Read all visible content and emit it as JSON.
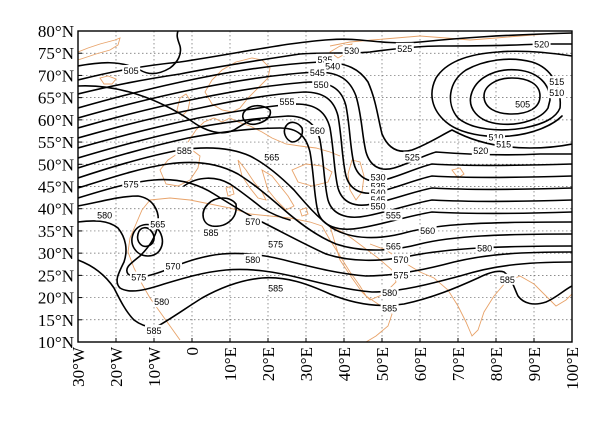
{
  "map": {
    "projection": "equirectangular",
    "lon_range": [
      -30,
      100
    ],
    "lat_range": [
      10,
      80
    ],
    "lon_step": 10,
    "lat_step": 5,
    "grid": "dotted",
    "coastline_color": "#e8a36a",
    "contour_color": "#000000",
    "contour_interval": 5,
    "lat_labels": [
      "10°N",
      "15°N",
      "20°N",
      "25°N",
      "30°N",
      "35°N",
      "40°N",
      "45°N",
      "50°N",
      "55°N",
      "60°N",
      "65°N",
      "70°N",
      "75°N",
      "80°N"
    ],
    "lon_labels": [
      "30°W",
      "20°W",
      "10°W",
      "0",
      "10°E",
      "20°E",
      "30°E",
      "40°E",
      "50°E",
      "60°E",
      "70°E",
      "80°E",
      "90°E",
      "100°E"
    ],
    "contour_labels": [
      {
        "text": "505",
        "lon": -16,
        "lat": 71
      },
      {
        "text": "530",
        "lon": 42,
        "lat": 75.5
      },
      {
        "text": "525",
        "lon": 56,
        "lat": 76
      },
      {
        "text": "520",
        "lon": 92,
        "lat": 77
      },
      {
        "text": "535",
        "lon": 35,
        "lat": 73.5
      },
      {
        "text": "540",
        "lon": 37,
        "lat": 72
      },
      {
        "text": "545",
        "lon": 33,
        "lat": 70.5
      },
      {
        "text": "550",
        "lon": 34,
        "lat": 67.8
      },
      {
        "text": "515",
        "lon": 96,
        "lat": 68.5
      },
      {
        "text": "510",
        "lon": 96,
        "lat": 66
      },
      {
        "text": "505",
        "lon": 87,
        "lat": 63.5
      },
      {
        "text": "555",
        "lon": 25,
        "lat": 64
      },
      {
        "text": "560",
        "lon": 33,
        "lat": 57.5
      },
      {
        "text": "565",
        "lon": 21,
        "lat": 51.5
      },
      {
        "text": "510",
        "lon": 80,
        "lat": 56
      },
      {
        "text": "515",
        "lon": 82,
        "lat": 54.5
      },
      {
        "text": "520",
        "lon": 76,
        "lat": 53
      },
      {
        "text": "525",
        "lon": 58,
        "lat": 51.5
      },
      {
        "text": "585",
        "lon": -2,
        "lat": 53
      },
      {
        "text": "530",
        "lon": 49,
        "lat": 47
      },
      {
        "text": "535",
        "lon": 49,
        "lat": 45
      },
      {
        "text": "540",
        "lon": 49,
        "lat": 43.5
      },
      {
        "text": "545",
        "lon": 49,
        "lat": 42
      },
      {
        "text": "550",
        "lon": 49,
        "lat": 40.5
      },
      {
        "text": "555",
        "lon": 53,
        "lat": 38.5
      },
      {
        "text": "575",
        "lon": -16,
        "lat": 45.5
      },
      {
        "text": "580",
        "lon": -23,
        "lat": 38.5
      },
      {
        "text": "565",
        "lon": -9,
        "lat": 36.5
      },
      {
        "text": "585",
        "lon": 5,
        "lat": 34.5
      },
      {
        "text": "570",
        "lon": 16,
        "lat": 37
      },
      {
        "text": "560",
        "lon": 62,
        "lat": 35
      },
      {
        "text": "565",
        "lon": 53,
        "lat": 31.5
      },
      {
        "text": "575",
        "lon": 22,
        "lat": 32
      },
      {
        "text": "570",
        "lon": -5,
        "lat": 27
      },
      {
        "text": "580",
        "lon": 16,
        "lat": 28.5
      },
      {
        "text": "570",
        "lon": 55,
        "lat": 28.5
      },
      {
        "text": "575",
        "lon": -14,
        "lat": 24.5
      },
      {
        "text": "575",
        "lon": 55,
        "lat": 25
      },
      {
        "text": "580",
        "lon": 77,
        "lat": 31
      },
      {
        "text": "585",
        "lon": 22,
        "lat": 22
      },
      {
        "text": "580",
        "lon": -8,
        "lat": 19
      },
      {
        "text": "580",
        "lon": 52,
        "lat": 21
      },
      {
        "text": "585",
        "lon": 83,
        "lat": 24
      },
      {
        "text": "585",
        "lon": 52,
        "lat": 17.5
      },
      {
        "text": "585",
        "lon": -10,
        "lat": 12.5
      }
    ]
  }
}
